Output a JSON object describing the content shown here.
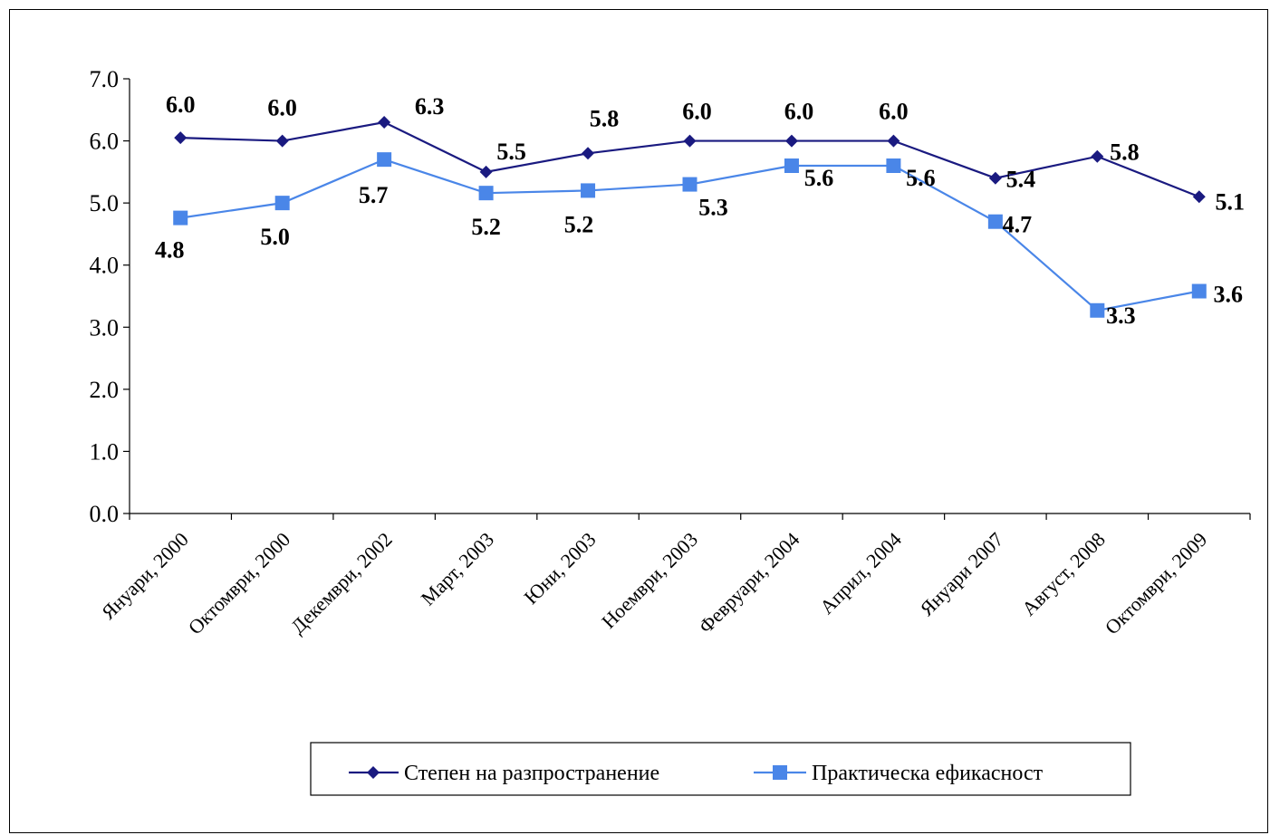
{
  "chart_data": {
    "type": "line",
    "title": "",
    "xlabel": "",
    "ylabel": "",
    "ylim": [
      0,
      7
    ],
    "yticks": [
      "0.0",
      "1.0",
      "2.0",
      "3.0",
      "4.0",
      "5.0",
      "6.0",
      "7.0"
    ],
    "grid": false,
    "legend_position": "bottom",
    "categories": [
      "Януари, 2000",
      "Октомври, 2000",
      "Декември, 2002",
      "Март, 2003",
      "Юни, 2003",
      "Ноември, 2003",
      "Февруари, 2004",
      "Април, 2004",
      "Януари 2007",
      "Август, 2008",
      "Октомври, 2009"
    ],
    "series": [
      {
        "name": "Степен на разпространение",
        "color": "#1a1a80",
        "marker": "diamond",
        "values": [
          6.05,
          6.0,
          6.3,
          5.5,
          5.8,
          6.0,
          6.0,
          6.0,
          5.4,
          5.75,
          5.1
        ],
        "labels": [
          "6.0",
          "6.0",
          "6.3",
          "5.5",
          "5.8",
          "6.0",
          "6.0",
          "6.0",
          "5.4",
          "5.8",
          "5.1"
        ]
      },
      {
        "name": "Практическа ефикасност",
        "color": "#4a86e8",
        "marker": "square",
        "values": [
          4.76,
          5.0,
          5.7,
          5.16,
          5.2,
          5.3,
          5.6,
          5.6,
          4.7,
          3.27,
          3.58
        ],
        "labels": [
          "4.8",
          "5.0",
          "5.7",
          "5.2",
          "5.2",
          "5.3",
          "5.6",
          "5.6",
          "4.7",
          "3.3",
          "3.6"
        ]
      }
    ]
  }
}
